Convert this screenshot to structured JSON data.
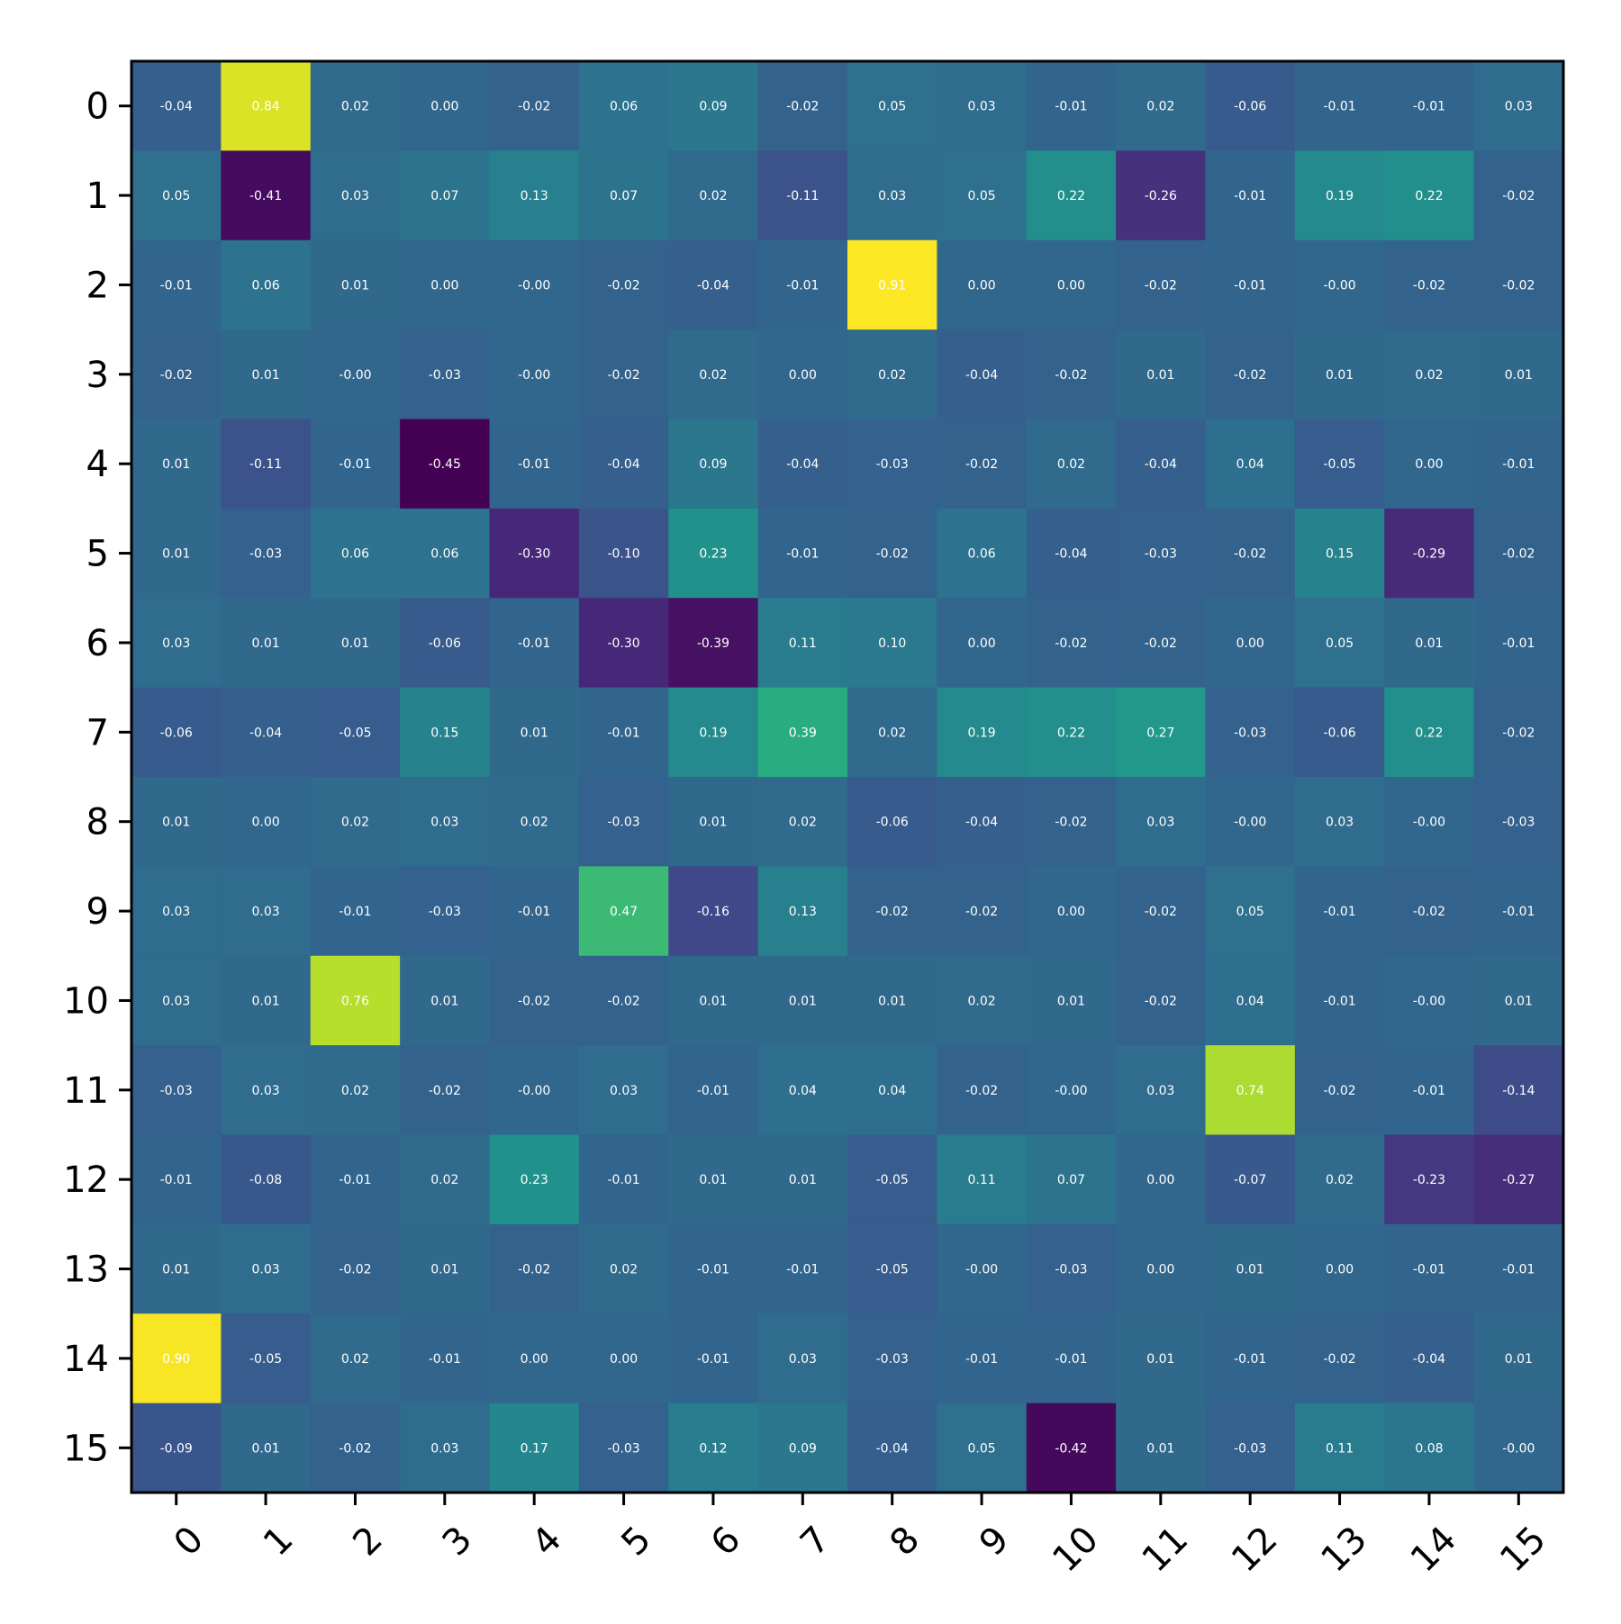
{
  "chart_data": {
    "type": "heatmap",
    "title": "",
    "xlabel": "",
    "ylabel": "",
    "colormap": "viridis",
    "color_range": [
      -0.45,
      0.91
    ],
    "x_categories": [
      "0",
      "1",
      "2",
      "3",
      "4",
      "5",
      "6",
      "7",
      "8",
      "9",
      "10",
      "11",
      "12",
      "13",
      "14",
      "15"
    ],
    "y_categories": [
      "0",
      "1",
      "2",
      "3",
      "4",
      "5",
      "6",
      "7",
      "8",
      "9",
      "10",
      "11",
      "12",
      "13",
      "14",
      "15"
    ],
    "values": [
      [
        -0.04,
        0.84,
        0.02,
        0.0,
        -0.02,
        0.06,
        0.09,
        -0.02,
        0.05,
        0.03,
        -0.01,
        0.02,
        -0.06,
        -0.01,
        -0.01,
        0.03
      ],
      [
        0.05,
        -0.41,
        0.03,
        0.07,
        0.13,
        0.07,
        0.02,
        -0.11,
        0.03,
        0.05,
        0.22,
        -0.26,
        -0.01,
        0.19,
        0.22,
        -0.02
      ],
      [
        -0.01,
        0.06,
        0.01,
        0.0,
        -0.0,
        -0.02,
        -0.04,
        -0.01,
        0.91,
        0.0,
        0.0,
        -0.02,
        -0.01,
        -0.0,
        -0.02,
        -0.02
      ],
      [
        -0.02,
        0.01,
        -0.0,
        -0.03,
        -0.0,
        -0.02,
        0.02,
        0.0,
        0.02,
        -0.04,
        -0.02,
        0.01,
        -0.02,
        0.01,
        0.02,
        0.01
      ],
      [
        0.01,
        -0.11,
        -0.01,
        -0.45,
        -0.01,
        -0.04,
        0.09,
        -0.04,
        -0.03,
        -0.02,
        0.02,
        -0.04,
        0.04,
        -0.05,
        0.0,
        -0.01
      ],
      [
        0.01,
        -0.03,
        0.06,
        0.06,
        -0.3,
        -0.1,
        0.23,
        -0.01,
        -0.02,
        0.06,
        -0.04,
        -0.03,
        -0.02,
        0.15,
        -0.29,
        -0.02
      ],
      [
        0.03,
        0.01,
        0.01,
        -0.06,
        -0.01,
        -0.3,
        -0.39,
        0.11,
        0.1,
        0.0,
        -0.02,
        -0.02,
        0.0,
        0.05,
        0.01,
        -0.01
      ],
      [
        -0.06,
        -0.04,
        -0.05,
        0.15,
        0.01,
        -0.01,
        0.19,
        0.39,
        0.02,
        0.19,
        0.22,
        0.27,
        -0.03,
        -0.06,
        0.22,
        -0.02
      ],
      [
        0.01,
        0.0,
        0.02,
        0.03,
        0.02,
        -0.03,
        0.01,
        0.02,
        -0.06,
        -0.04,
        -0.02,
        0.03,
        -0.0,
        0.03,
        -0.0,
        -0.03
      ],
      [
        0.03,
        0.03,
        -0.01,
        -0.03,
        -0.01,
        0.47,
        -0.16,
        0.13,
        -0.02,
        -0.02,
        0.0,
        -0.02,
        0.05,
        -0.01,
        -0.02,
        -0.01
      ],
      [
        0.03,
        0.01,
        0.76,
        0.01,
        -0.02,
        -0.02,
        0.01,
        0.01,
        0.01,
        0.02,
        0.01,
        -0.02,
        0.04,
        -0.01,
        -0.0,
        0.01
      ],
      [
        -0.03,
        0.03,
        0.02,
        -0.02,
        -0.0,
        0.03,
        -0.01,
        0.04,
        0.04,
        -0.02,
        -0.0,
        0.03,
        0.74,
        -0.02,
        -0.01,
        -0.14
      ],
      [
        -0.01,
        -0.08,
        -0.01,
        0.02,
        0.23,
        -0.01,
        0.01,
        0.01,
        -0.05,
        0.11,
        0.07,
        0.0,
        -0.07,
        0.02,
        -0.23,
        -0.27
      ],
      [
        0.01,
        0.03,
        -0.02,
        0.01,
        -0.02,
        0.02,
        -0.01,
        -0.01,
        -0.05,
        -0.0,
        -0.03,
        0.0,
        0.01,
        0.0,
        -0.01,
        -0.01
      ],
      [
        0.9,
        -0.05,
        0.02,
        -0.01,
        0.0,
        0.0,
        -0.01,
        0.03,
        -0.03,
        -0.01,
        -0.01,
        0.01,
        -0.01,
        -0.02,
        -0.04,
        0.01
      ],
      [
        -0.09,
        0.01,
        -0.02,
        0.03,
        0.17,
        -0.03,
        0.12,
        0.09,
        -0.04,
        0.05,
        -0.42,
        0.01,
        -0.03,
        0.11,
        0.08,
        -0.0
      ]
    ],
    "labels": [
      [
        "-0.04",
        "0.84",
        "0.02",
        "0.00",
        "-0.02",
        "0.06",
        "0.09",
        "-0.02",
        "0.05",
        "0.03",
        "-0.01",
        "0.02",
        "-0.06",
        "-0.01",
        "-0.01",
        "0.03"
      ],
      [
        "0.05",
        "-0.41",
        "0.03",
        "0.07",
        "0.13",
        "0.07",
        "0.02",
        "-0.11",
        "0.03",
        "0.05",
        "0.22",
        "-0.26",
        "-0.01",
        "0.19",
        "0.22",
        "-0.02"
      ],
      [
        "-0.01",
        "0.06",
        "0.01",
        "0.00",
        "-0.00",
        "-0.02",
        "-0.04",
        "-0.01",
        "0.91",
        "0.00",
        "0.00",
        "-0.02",
        "-0.01",
        "-0.00",
        "-0.02",
        "-0.02"
      ],
      [
        "-0.02",
        "0.01",
        "-0.00",
        "-0.03",
        "-0.00",
        "-0.02",
        "0.02",
        "0.00",
        "0.02",
        "-0.04",
        "-0.02",
        "0.01",
        "-0.02",
        "0.01",
        "0.02",
        "0.01"
      ],
      [
        "0.01",
        "-0.11",
        "-0.01",
        "-0.45",
        "-0.01",
        "-0.04",
        "0.09",
        "-0.04",
        "-0.03",
        "-0.02",
        "0.02",
        "-0.04",
        "0.04",
        "-0.05",
        "0.00",
        "-0.01"
      ],
      [
        "0.01",
        "-0.03",
        "0.06",
        "0.06",
        "-0.30",
        "-0.10",
        "0.23",
        "-0.01",
        "-0.02",
        "0.06",
        "-0.04",
        "-0.03",
        "-0.02",
        "0.15",
        "-0.29",
        "-0.02"
      ],
      [
        "0.03",
        "0.01",
        "0.01",
        "-0.06",
        "-0.01",
        "-0.30",
        "-0.39",
        "0.11",
        "0.10",
        "0.00",
        "-0.02",
        "-0.02",
        "0.00",
        "0.05",
        "0.01",
        "-0.01"
      ],
      [
        "-0.06",
        "-0.04",
        "-0.05",
        "0.15",
        "0.01",
        "-0.01",
        "0.19",
        "0.39",
        "0.02",
        "0.19",
        "0.22",
        "0.27",
        "-0.03",
        "-0.06",
        "0.22",
        "-0.02"
      ],
      [
        "0.01",
        "0.00",
        "0.02",
        "0.03",
        "0.02",
        "-0.03",
        "0.01",
        "0.02",
        "-0.06",
        "-0.04",
        "-0.02",
        "0.03",
        "-0.00",
        "0.03",
        "-0.00",
        "-0.03"
      ],
      [
        "0.03",
        "0.03",
        "-0.01",
        "-0.03",
        "-0.01",
        "0.47",
        "-0.16",
        "0.13",
        "-0.02",
        "-0.02",
        "0.00",
        "-0.02",
        "0.05",
        "-0.01",
        "-0.02",
        "-0.01"
      ],
      [
        "0.03",
        "0.01",
        "0.76",
        "0.01",
        "-0.02",
        "-0.02",
        "0.01",
        "0.01",
        "0.01",
        "0.02",
        "0.01",
        "-0.02",
        "0.04",
        "-0.01",
        "-0.00",
        "0.01"
      ],
      [
        "-0.03",
        "0.03",
        "0.02",
        "-0.02",
        "-0.00",
        "0.03",
        "-0.01",
        "0.04",
        "0.04",
        "-0.02",
        "-0.00",
        "0.03",
        "0.74",
        "-0.02",
        "-0.01",
        "-0.14"
      ],
      [
        "-0.01",
        "-0.08",
        "-0.01",
        "0.02",
        "0.23",
        "-0.01",
        "0.01",
        "0.01",
        "-0.05",
        "0.11",
        "0.07",
        "0.00",
        "-0.07",
        "0.02",
        "-0.23",
        "-0.27"
      ],
      [
        "0.01",
        "0.03",
        "-0.02",
        "0.01",
        "-0.02",
        "0.02",
        "-0.01",
        "-0.01",
        "-0.05",
        "-0.00",
        "-0.03",
        "0.00",
        "0.01",
        "0.00",
        "-0.01",
        "-0.01"
      ],
      [
        "0.90",
        "-0.05",
        "0.02",
        "-0.01",
        "0.00",
        "0.00",
        "-0.01",
        "0.03",
        "-0.03",
        "-0.01",
        "-0.01",
        "0.01",
        "-0.01",
        "-0.02",
        "-0.04",
        "0.01"
      ],
      [
        "-0.09",
        "0.01",
        "-0.02",
        "0.03",
        "0.17",
        "-0.03",
        "0.12",
        "0.09",
        "-0.04",
        "0.05",
        "-0.42",
        "0.01",
        "-0.03",
        "0.11",
        "0.08",
        "-0.00"
      ]
    ],
    "legend": "none",
    "grid": false
  }
}
